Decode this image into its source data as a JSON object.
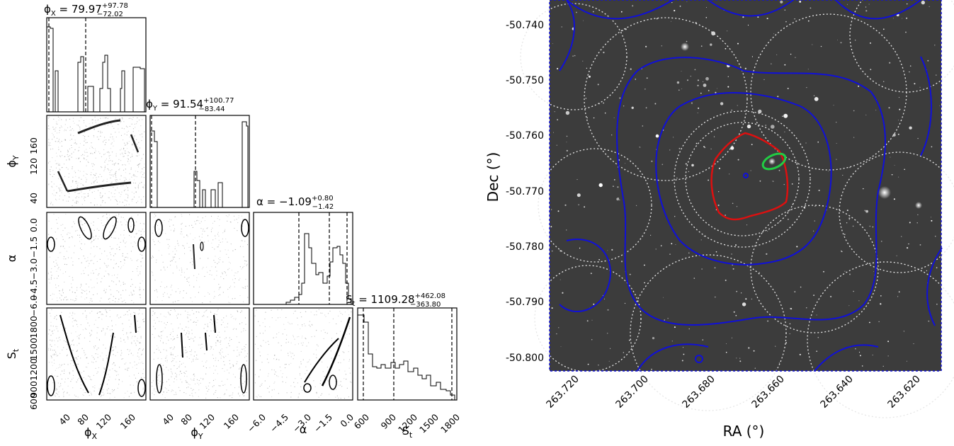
{
  "corner_plot": {
    "panels": {
      "phiX": {
        "title_base": "ϕ",
        "title_sub": "X",
        "title_eq": " = 79.97",
        "title_sup": "+97.78",
        "title_inf": "−72.02"
      },
      "phiY": {
        "title_base": "ϕ",
        "title_sub": "Y",
        "title_eq": " = 91.54",
        "title_sup": "+100.77",
        "title_inf": "−83.44"
      },
      "alpha": {
        "title_base": "α",
        "title_eq": " = −1.09",
        "title_sup": "+0.80",
        "title_inf": "−1.42"
      },
      "St": {
        "title_base": "S",
        "title_sub": "t",
        "title_eq": " = 1109.28",
        "title_sup": "+462.08",
        "title_inf": "−363.80"
      }
    },
    "axis_labels": {
      "phiX": {
        "base": "ϕ",
        "sub": "X"
      },
      "phiY": {
        "base": "ϕ",
        "sub": "Y"
      },
      "alpha": {
        "base": "α"
      },
      "St": {
        "base": "S",
        "sub": "t"
      }
    },
    "ticks": {
      "phiX": [
        "40",
        "80",
        "120",
        "160"
      ],
      "phiY_x": [
        "40",
        "80",
        "120",
        "160"
      ],
      "phiY_y": [
        "40",
        "120",
        "160"
      ],
      "alpha_x": [
        "−6.0",
        "−4.5",
        "−3.0",
        "−1.5",
        "0.0"
      ],
      "alpha_y": [
        "0.0",
        "−1.5",
        "−3.0",
        "−4.5",
        "−6.0"
      ],
      "St_x": [
        "600",
        "900",
        "1200",
        "1500",
        "1800"
      ],
      "St_y": [
        "1800",
        "1500",
        "1200",
        "900",
        "600"
      ]
    }
  },
  "sky_map": {
    "xlabel": "RA (°)",
    "ylabel": "Dec (°)",
    "ra_ticks": [
      "263.720",
      "263.700",
      "263.680",
      "263.660",
      "263.640",
      "263.620"
    ],
    "dec_ticks": [
      "-50.740",
      "-50.750",
      "-50.760",
      "-50.770",
      "-50.780",
      "-50.790",
      "-50.800"
    ],
    "background_color": "#3c3c3c",
    "contour_colors": {
      "blue": "#1010d8",
      "red": "#dd1010",
      "green": "#22cc44",
      "dotted": "#e6e6e6"
    }
  },
  "chart_data": [
    {
      "type": "histogram",
      "parameter": "ϕX",
      "xlim": [
        0,
        180
      ],
      "median": 79.97,
      "err_plus": 97.78,
      "err_minus": 72.02,
      "quantiles": [
        7.95,
        79.97,
        177.75
      ]
    },
    {
      "type": "histogram",
      "parameter": "ϕY",
      "xlim": [
        0,
        180
      ],
      "median": 91.54,
      "err_plus": 100.77,
      "err_minus": 83.44,
      "quantiles": [
        8.1,
        91.54,
        192.31
      ]
    },
    {
      "type": "histogram",
      "parameter": "α",
      "xlim": [
        -6.0,
        0.5
      ],
      "median": -1.09,
      "err_plus": 0.8,
      "err_minus": 1.42,
      "quantiles": [
        -2.51,
        -1.09,
        -0.29
      ]
    },
    {
      "type": "histogram",
      "parameter": "St",
      "xlim": [
        600,
        1880
      ],
      "median": 1109.28,
      "err_plus": 462.08,
      "err_minus": 363.8,
      "quantiles": [
        745.48,
        1109.28,
        1571.36
      ]
    },
    {
      "type": "scatter",
      "x_parameter": "RA (°)",
      "y_parameter": "Dec (°)",
      "xlim": [
        263.728,
        263.612
      ],
      "ylim": [
        -50.802,
        -50.733
      ]
    }
  ]
}
